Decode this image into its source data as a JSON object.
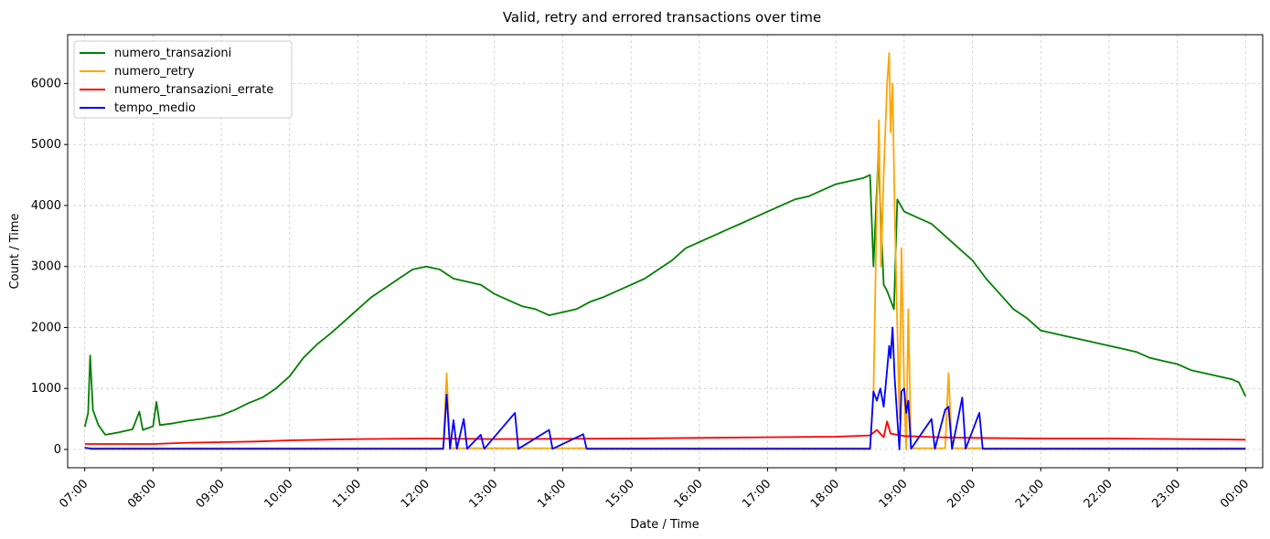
{
  "chart_data": {
    "type": "line",
    "title": "Valid, retry and errored transactions over time",
    "xlabel": "Date / Time",
    "ylabel": "Count / Time",
    "x_ticks": [
      "07:00",
      "08:00",
      "09:00",
      "10:00",
      "11:00",
      "12:00",
      "13:00",
      "14:00",
      "15:00",
      "16:00",
      "17:00",
      "18:00",
      "19:00",
      "20:00",
      "21:00",
      "22:00",
      "23:00",
      "00:00"
    ],
    "xlim_hours": [
      6.75,
      24.25
    ],
    "ylim": [
      -300,
      6800
    ],
    "y_ticks": [
      0,
      1000,
      2000,
      3000,
      4000,
      5000,
      6000
    ],
    "grid": true,
    "legend_position": "top-left",
    "series": [
      {
        "name": "numero_transazioni",
        "color": "#008000",
        "points": [
          [
            7.0,
            370
          ],
          [
            7.05,
            600
          ],
          [
            7.08,
            1540
          ],
          [
            7.12,
            650
          ],
          [
            7.2,
            400
          ],
          [
            7.3,
            240
          ],
          [
            7.5,
            280
          ],
          [
            7.7,
            330
          ],
          [
            7.8,
            620
          ],
          [
            7.85,
            320
          ],
          [
            8.0,
            380
          ],
          [
            8.05,
            780
          ],
          [
            8.1,
            400
          ],
          [
            8.3,
            430
          ],
          [
            8.5,
            470
          ],
          [
            8.7,
            500
          ],
          [
            9.0,
            560
          ],
          [
            9.2,
            650
          ],
          [
            9.4,
            760
          ],
          [
            9.6,
            850
          ],
          [
            9.8,
            1000
          ],
          [
            10.0,
            1200
          ],
          [
            10.2,
            1500
          ],
          [
            10.4,
            1720
          ],
          [
            10.6,
            1900
          ],
          [
            10.8,
            2100
          ],
          [
            11.0,
            2300
          ],
          [
            11.2,
            2500
          ],
          [
            11.4,
            2650
          ],
          [
            11.6,
            2800
          ],
          [
            11.8,
            2950
          ],
          [
            12.0,
            3000
          ],
          [
            12.2,
            2950
          ],
          [
            12.4,
            2800
          ],
          [
            12.6,
            2750
          ],
          [
            12.8,
            2700
          ],
          [
            13.0,
            2550
          ],
          [
            13.2,
            2450
          ],
          [
            13.4,
            2350
          ],
          [
            13.6,
            2300
          ],
          [
            13.8,
            2200
          ],
          [
            14.0,
            2250
          ],
          [
            14.2,
            2300
          ],
          [
            14.4,
            2420
          ],
          [
            14.6,
            2500
          ],
          [
            14.8,
            2600
          ],
          [
            15.0,
            2700
          ],
          [
            15.2,
            2800
          ],
          [
            15.4,
            2950
          ],
          [
            15.6,
            3100
          ],
          [
            15.8,
            3300
          ],
          [
            16.0,
            3400
          ],
          [
            16.2,
            3500
          ],
          [
            16.4,
            3600
          ],
          [
            16.6,
            3700
          ],
          [
            16.8,
            3800
          ],
          [
            17.0,
            3900
          ],
          [
            17.2,
            4000
          ],
          [
            17.4,
            4100
          ],
          [
            17.6,
            4150
          ],
          [
            17.8,
            4250
          ],
          [
            18.0,
            4350
          ],
          [
            18.2,
            4400
          ],
          [
            18.4,
            4450
          ],
          [
            18.5,
            4500
          ],
          [
            18.55,
            3000
          ],
          [
            18.62,
            4800
          ],
          [
            18.7,
            2700
          ],
          [
            18.75,
            2600
          ],
          [
            18.85,
            2300
          ],
          [
            18.9,
            4100
          ],
          [
            19.0,
            3900
          ],
          [
            19.2,
            3800
          ],
          [
            19.4,
            3700
          ],
          [
            19.6,
            3500
          ],
          [
            19.8,
            3300
          ],
          [
            20.0,
            3100
          ],
          [
            20.2,
            2800
          ],
          [
            20.4,
            2550
          ],
          [
            20.6,
            2300
          ],
          [
            20.8,
            2150
          ],
          [
            21.0,
            1950
          ],
          [
            21.2,
            1900
          ],
          [
            21.4,
            1850
          ],
          [
            21.6,
            1800
          ],
          [
            21.8,
            1750
          ],
          [
            22.0,
            1700
          ],
          [
            22.2,
            1650
          ],
          [
            22.4,
            1600
          ],
          [
            22.6,
            1500
          ],
          [
            22.8,
            1450
          ],
          [
            23.0,
            1400
          ],
          [
            23.2,
            1300
          ],
          [
            23.4,
            1250
          ],
          [
            23.6,
            1200
          ],
          [
            23.8,
            1150
          ],
          [
            23.9,
            1100
          ],
          [
            24.0,
            870
          ]
        ]
      },
      {
        "name": "numero_retry",
        "color": "#FFA500",
        "points": [
          [
            7.0,
            20
          ],
          [
            12.25,
            20
          ],
          [
            12.3,
            1250
          ],
          [
            12.35,
            20
          ],
          [
            18.5,
            20
          ],
          [
            18.55,
            900
          ],
          [
            18.6,
            4000
          ],
          [
            18.63,
            5400
          ],
          [
            18.66,
            3000
          ],
          [
            18.7,
            4500
          ],
          [
            18.75,
            6000
          ],
          [
            18.78,
            6500
          ],
          [
            18.8,
            5200
          ],
          [
            18.83,
            6000
          ],
          [
            18.86,
            4000
          ],
          [
            18.9,
            2000
          ],
          [
            18.93,
            500
          ],
          [
            18.96,
            3300
          ],
          [
            19.0,
            1000
          ],
          [
            19.03,
            0
          ],
          [
            19.06,
            2300
          ],
          [
            19.1,
            20
          ],
          [
            19.6,
            20
          ],
          [
            19.65,
            1250
          ],
          [
            19.7,
            20
          ],
          [
            24.0,
            20
          ]
        ]
      },
      {
        "name": "numero_transazioni_errate",
        "color": "#FF0000",
        "points": [
          [
            7.0,
            90
          ],
          [
            8.0,
            90
          ],
          [
            8.5,
            110
          ],
          [
            9.0,
            120
          ],
          [
            9.5,
            130
          ],
          [
            10.0,
            150
          ],
          [
            10.5,
            160
          ],
          [
            11.0,
            170
          ],
          [
            12.0,
            180
          ],
          [
            13.0,
            170
          ],
          [
            14.0,
            175
          ],
          [
            15.0,
            180
          ],
          [
            16.0,
            190
          ],
          [
            17.0,
            200
          ],
          [
            18.0,
            210
          ],
          [
            18.5,
            230
          ],
          [
            18.6,
            320
          ],
          [
            18.7,
            200
          ],
          [
            18.75,
            460
          ],
          [
            18.8,
            260
          ],
          [
            19.0,
            220
          ],
          [
            19.5,
            200
          ],
          [
            20.0,
            190
          ],
          [
            21.0,
            180
          ],
          [
            22.0,
            180
          ],
          [
            23.0,
            170
          ],
          [
            24.0,
            160
          ]
        ]
      },
      {
        "name": "tempo_medio",
        "color": "#0000FF",
        "points": [
          [
            7.0,
            30
          ],
          [
            7.1,
            10
          ],
          [
            12.25,
            10
          ],
          [
            12.3,
            900
          ],
          [
            12.35,
            10
          ],
          [
            12.4,
            480
          ],
          [
            12.45,
            10
          ],
          [
            12.55,
            500
          ],
          [
            12.6,
            10
          ],
          [
            12.8,
            240
          ],
          [
            12.85,
            10
          ],
          [
            13.3,
            600
          ],
          [
            13.35,
            10
          ],
          [
            13.8,
            320
          ],
          [
            13.85,
            10
          ],
          [
            14.3,
            250
          ],
          [
            14.35,
            10
          ],
          [
            18.5,
            10
          ],
          [
            18.55,
            950
          ],
          [
            18.6,
            800
          ],
          [
            18.65,
            1000
          ],
          [
            18.7,
            700
          ],
          [
            18.75,
            1300
          ],
          [
            18.78,
            1700
          ],
          [
            18.8,
            1500
          ],
          [
            18.83,
            2000
          ],
          [
            18.86,
            1200
          ],
          [
            18.9,
            500
          ],
          [
            18.93,
            0
          ],
          [
            18.96,
            950
          ],
          [
            19.0,
            1000
          ],
          [
            19.03,
            600
          ],
          [
            19.06,
            800
          ],
          [
            19.1,
            10
          ],
          [
            19.4,
            500
          ],
          [
            19.45,
            10
          ],
          [
            19.6,
            650
          ],
          [
            19.65,
            700
          ],
          [
            19.7,
            10
          ],
          [
            19.85,
            850
          ],
          [
            19.9,
            10
          ],
          [
            20.1,
            600
          ],
          [
            20.15,
            10
          ],
          [
            24.0,
            10
          ]
        ]
      }
    ]
  }
}
